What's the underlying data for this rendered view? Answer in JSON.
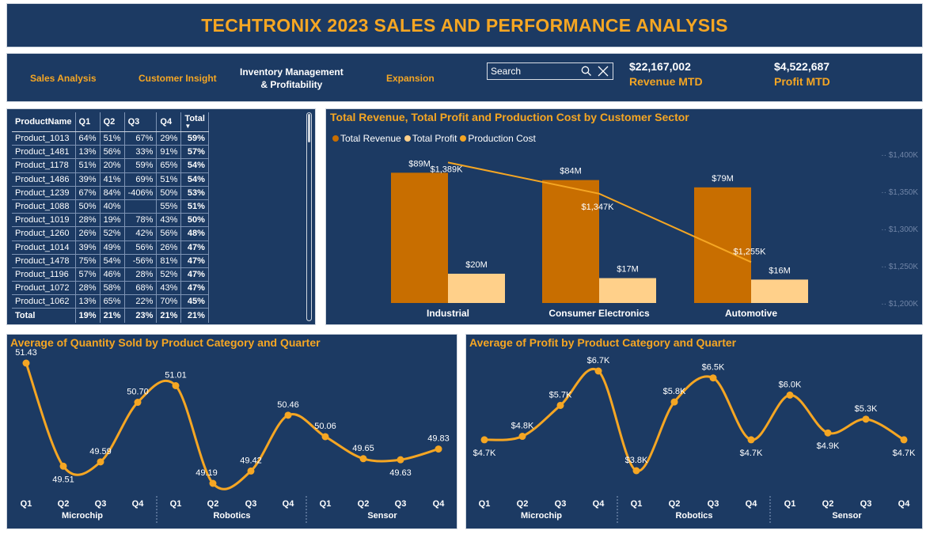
{
  "header": {
    "title": "TECHTRONIX 2023 SALES AND PERFORMANCE ANALYSIS"
  },
  "nav": {
    "sales_analysis": "Sales Analysis",
    "customer_insight": "Customer Insight",
    "inventory_line1": "Inventory Management",
    "inventory_line2": "& Profitability",
    "expansion": "Expansion"
  },
  "search": {
    "placeholder": "Search"
  },
  "kpis": {
    "revenue_value": "$22,167,002",
    "revenue_label": "Revenue MTD",
    "profit_value": "$4,522,687",
    "profit_label": "Profit MTD"
  },
  "matrix": {
    "headers": [
      "ProductName",
      "Q1",
      "Q2",
      "Q3",
      "Q4",
      "Total"
    ],
    "rows": [
      [
        "Product_1013",
        "64%",
        "51%",
        "67%",
        "29%",
        "59%"
      ],
      [
        "Product_1481",
        "13%",
        "56%",
        "33%",
        "91%",
        "57%"
      ],
      [
        "Product_1178",
        "51%",
        "20%",
        "59%",
        "65%",
        "54%"
      ],
      [
        "Product_1486",
        "39%",
        "41%",
        "69%",
        "51%",
        "54%"
      ],
      [
        "Product_1239",
        "67%",
        "84%",
        "-406%",
        "50%",
        "53%"
      ],
      [
        "Product_1088",
        "50%",
        "40%",
        "",
        "55%",
        "51%"
      ],
      [
        "Product_1019",
        "28%",
        "19%",
        "78%",
        "43%",
        "50%"
      ],
      [
        "Product_1260",
        "26%",
        "52%",
        "42%",
        "56%",
        "48%"
      ],
      [
        "Product_1014",
        "39%",
        "49%",
        "56%",
        "26%",
        "47%"
      ],
      [
        "Product_1478",
        "75%",
        "54%",
        "-56%",
        "81%",
        "47%"
      ],
      [
        "Product_1196",
        "57%",
        "46%",
        "28%",
        "52%",
        "47%"
      ],
      [
        "Product_1072",
        "28%",
        "58%",
        "68%",
        "43%",
        "47%"
      ],
      [
        "Product_1062",
        "13%",
        "65%",
        "22%",
        "70%",
        "45%"
      ]
    ],
    "total_row": [
      "Total",
      "19%",
      "21%",
      "23%",
      "21%",
      "21%"
    ]
  },
  "colors": {
    "panel": "#1c3a63",
    "accent": "#f5a623",
    "revenue": "#c86e00",
    "profit": "#ffd08a",
    "cost_line": "#f5a623"
  },
  "chart_data": [
    {
      "type": "bar",
      "title": "Total Revenue, Total Profit and Production Cost by Customer Sector",
      "categories": [
        "Industrial",
        "Consumer Electronics",
        "Automotive"
      ],
      "series": [
        {
          "name": "Total Revenue",
          "values": [
            89,
            84,
            79
          ],
          "labels": [
            "$89M",
            "$84M",
            "$79M"
          ]
        },
        {
          "name": "Total Profit",
          "values": [
            20,
            17,
            16
          ],
          "labels": [
            "$20M",
            "$17M",
            "$16M"
          ]
        },
        {
          "name": "Production Cost",
          "values": [
            1389,
            1347,
            1255
          ],
          "labels": [
            "$1,389K",
            "$1,347K",
            "$1,255K"
          ],
          "axis": "secondary",
          "render": "line"
        }
      ],
      "secondary_ticks": [
        "$1,400K",
        "$1,350K",
        "$1,300K",
        "$1,250K",
        "$1,200K"
      ],
      "secondary_ylim": [
        1200,
        1400
      ],
      "legend": "top-left",
      "grid": false
    },
    {
      "type": "line",
      "title": "Average of Quantity Sold by Product Category and Quarter",
      "groups": [
        "Microchip",
        "Robotics",
        "Sensor"
      ],
      "x": [
        "Q1",
        "Q2",
        "Q3",
        "Q4",
        "Q1",
        "Q2",
        "Q3",
        "Q4",
        "Q1",
        "Q2",
        "Q3",
        "Q4"
      ],
      "values": [
        51.43,
        49.51,
        49.59,
        50.7,
        51.01,
        49.19,
        49.42,
        50.46,
        50.06,
        49.65,
        49.63,
        49.83
      ],
      "labels": [
        "51.43",
        "49.51",
        "49.59",
        "50.70",
        "51.01",
        "49.19",
        "49.42",
        "50.46",
        "50.06",
        "49.65",
        "49.63",
        "49.83"
      ]
    },
    {
      "type": "line",
      "title": "Average of Profit by Product Category and Quarter",
      "groups": [
        "Microchip",
        "Robotics",
        "Sensor"
      ],
      "x": [
        "Q1",
        "Q2",
        "Q3",
        "Q4",
        "Q1",
        "Q2",
        "Q3",
        "Q4",
        "Q1",
        "Q2",
        "Q3",
        "Q4"
      ],
      "values": [
        4.7,
        4.8,
        5.7,
        6.7,
        3.8,
        5.8,
        6.5,
        4.7,
        6.0,
        4.9,
        5.3,
        4.7
      ],
      "labels": [
        "$4.7K",
        "$4.8K",
        "$5.7K",
        "$6.7K",
        "$3.8K",
        "$5.8K",
        "$6.5K",
        "$4.7K",
        "$6.0K",
        "$4.9K",
        "$5.3K",
        "$4.7K"
      ]
    }
  ]
}
